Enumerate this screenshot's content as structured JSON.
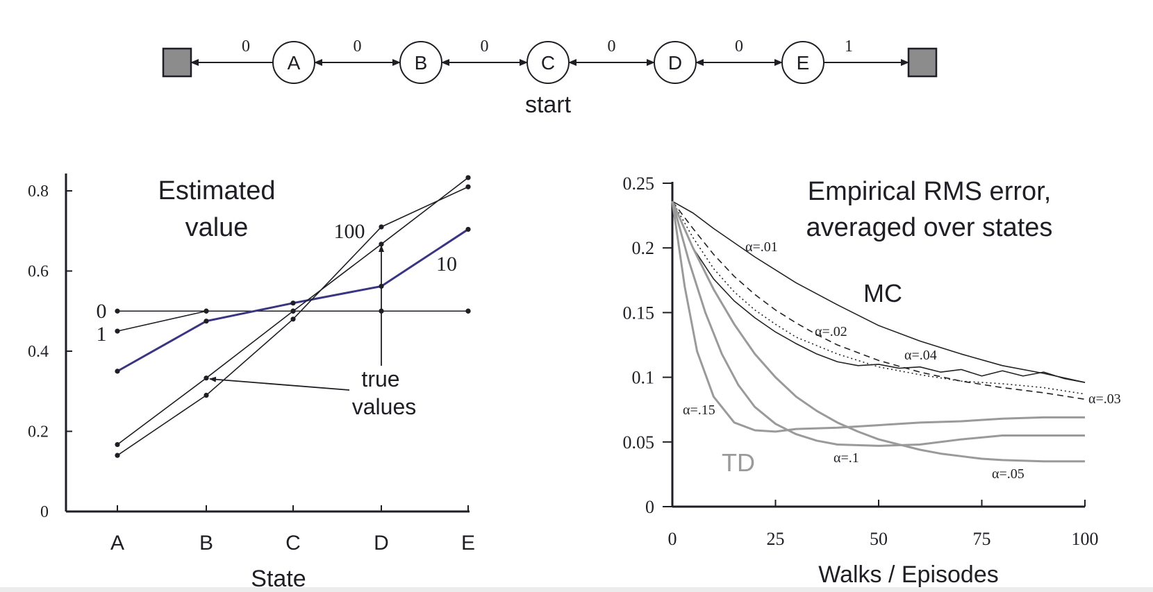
{
  "colors": {
    "ink": "#1e1e24",
    "terminal_fill": "#8c8c8c",
    "td_gray": "#9a9a9a",
    "mc_black": "#222222",
    "ten_episodes_blue": "#3a3582"
  },
  "random_walk": {
    "states": [
      "A",
      "B",
      "C",
      "D",
      "E"
    ],
    "rewards": [
      "0",
      "0",
      "0",
      "0",
      "0",
      "1"
    ],
    "start_label": "start"
  },
  "chart_data": [
    {
      "type": "line",
      "title": "Estimated\nvalue",
      "title_lines": [
        "Estimated",
        "value"
      ],
      "xlabel": "State",
      "ylabel": "",
      "categories": [
        "A",
        "B",
        "C",
        "D",
        "E"
      ],
      "ylim": [
        0,
        0.85
      ],
      "yticks": [
        0,
        0.2,
        0.4,
        0.6,
        0.8
      ],
      "ytick_labels": [
        "0",
        "0.2",
        "0.4",
        "0.6",
        "0.8"
      ],
      "grid": false,
      "series": [
        {
          "name": "0",
          "values": [
            0.5,
            0.5,
            0.5,
            0.5,
            0.5
          ]
        },
        {
          "name": "1",
          "values": [
            0.45,
            0.5,
            0.5,
            0.5,
            0.5
          ]
        },
        {
          "name": "10",
          "values": [
            0.35,
            0.475,
            0.52,
            0.562,
            0.704
          ]
        },
        {
          "name": "100",
          "values": [
            0.14,
            0.29,
            0.48,
            0.71,
            0.81
          ]
        },
        {
          "name": "true values",
          "values": [
            0.167,
            0.333,
            0.5,
            0.667,
            0.833
          ]
        }
      ],
      "annotations": [
        "true",
        "values"
      ]
    },
    {
      "type": "line",
      "title": "Empirical RMS error,\naveraged over states",
      "title_lines": [
        "Empirical RMS error,",
        "averaged over states"
      ],
      "xlabel": "Walks / Episodes",
      "ylabel": "",
      "xlim": [
        0,
        100
      ],
      "ylim": [
        0,
        0.25
      ],
      "xticks": [
        0,
        25,
        50,
        75,
        100
      ],
      "xtick_labels": [
        "0",
        "25",
        "50",
        "75",
        "100"
      ],
      "yticks": [
        0,
        0.05,
        0.1,
        0.15,
        0.2,
        0.25
      ],
      "ytick_labels": [
        "0",
        "0.05",
        "0.1",
        "0.15",
        "0.2",
        "0.25"
      ],
      "grid": false,
      "group_labels": [
        "MC",
        "TD"
      ],
      "series": [
        {
          "name": "α=.01",
          "group": "MC",
          "x": [
            0,
            5,
            10,
            20,
            30,
            40,
            50,
            60,
            70,
            80,
            90,
            100
          ],
          "values": [
            0.236,
            0.227,
            0.215,
            0.193,
            0.173,
            0.156,
            0.14,
            0.128,
            0.118,
            0.109,
            0.103,
            0.096
          ]
        },
        {
          "name": "α=.02",
          "group": "MC",
          "x": [
            0,
            5,
            10,
            15,
            20,
            25,
            30,
            35,
            40,
            50,
            60,
            70,
            80,
            90,
            100
          ],
          "values": [
            0.236,
            0.215,
            0.195,
            0.178,
            0.164,
            0.152,
            0.142,
            0.133,
            0.125,
            0.113,
            0.104,
            0.097,
            0.092,
            0.088,
            0.083
          ]
        },
        {
          "name": "α=.03",
          "group": "MC",
          "x": [
            0,
            5,
            10,
            15,
            20,
            25,
            30,
            40,
            50,
            60,
            70,
            80,
            90,
            100
          ],
          "values": [
            0.236,
            0.208,
            0.184,
            0.166,
            0.152,
            0.141,
            0.131,
            0.118,
            0.108,
            0.102,
            0.097,
            0.095,
            0.092,
            0.087
          ]
        },
        {
          "name": "α=.04",
          "group": "MC",
          "x": [
            0,
            5,
            10,
            15,
            20,
            25,
            30,
            35,
            40,
            45,
            50,
            55,
            60,
            65,
            70,
            75,
            80,
            85,
            90,
            95,
            100
          ],
          "values": [
            0.236,
            0.2,
            0.176,
            0.159,
            0.146,
            0.135,
            0.126,
            0.118,
            0.112,
            0.109,
            0.11,
            0.107,
            0.108,
            0.104,
            0.106,
            0.101,
            0.105,
            0.101,
            0.104,
            0.099,
            0.096
          ]
        },
        {
          "name": "α=.15",
          "group": "TD",
          "x": [
            0,
            3,
            6,
            10,
            15,
            20,
            25,
            30,
            40,
            50,
            60,
            70,
            80,
            90,
            100
          ],
          "values": [
            0.236,
            0.17,
            0.12,
            0.085,
            0.065,
            0.059,
            0.058,
            0.06,
            0.061,
            0.063,
            0.065,
            0.066,
            0.068,
            0.069,
            0.069
          ]
        },
        {
          "name": "α=.1",
          "group": "TD",
          "x": [
            0,
            4,
            8,
            12,
            16,
            20,
            25,
            30,
            35,
            40,
            50,
            60,
            70,
            80,
            90,
            100
          ],
          "values": [
            0.236,
            0.19,
            0.15,
            0.118,
            0.094,
            0.077,
            0.064,
            0.056,
            0.051,
            0.048,
            0.047,
            0.048,
            0.052,
            0.055,
            0.055,
            0.055
          ]
        },
        {
          "name": "α=.05",
          "group": "TD",
          "x": [
            0,
            5,
            10,
            15,
            20,
            25,
            30,
            35,
            40,
            45,
            50,
            55,
            60,
            65,
            70,
            75,
            80,
            90,
            100
          ],
          "values": [
            0.236,
            0.2,
            0.168,
            0.141,
            0.118,
            0.1,
            0.085,
            0.074,
            0.065,
            0.058,
            0.052,
            0.048,
            0.044,
            0.041,
            0.039,
            0.037,
            0.036,
            0.035,
            0.035
          ]
        }
      ]
    }
  ]
}
